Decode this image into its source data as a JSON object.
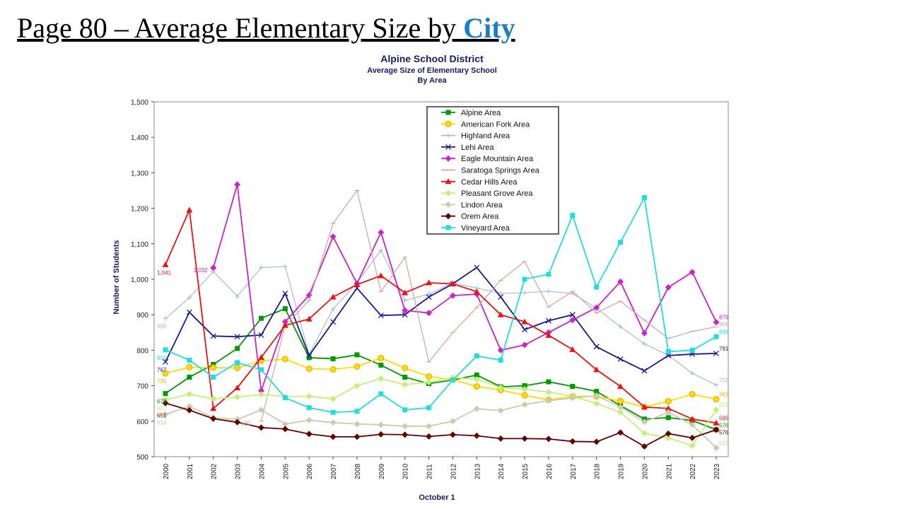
{
  "slide": {
    "title_prefix": "Page 80 – Average Elementary Size by ",
    "title_link": "City",
    "link_color": "#1a7fc4"
  },
  "chart_data": {
    "type": "line",
    "title": "Alpine School District",
    "subtitle": "Average Size of Elementary School",
    "subtitle2": "By Area",
    "xlabel": "October 1",
    "ylabel": "Number of Students",
    "ylim": [
      500,
      1500
    ],
    "yticks": [
      "500",
      "600",
      "700",
      "800",
      "900",
      "1,000",
      "1,100",
      "1,200",
      "1,300",
      "1,400",
      "1,500"
    ],
    "ytick_values": [
      500,
      600,
      700,
      800,
      900,
      1000,
      1100,
      1200,
      1300,
      1400,
      1500
    ],
    "x": [
      "2000",
      "2001",
      "2002",
      "2003",
      "2004",
      "2005",
      "2006",
      "2007",
      "2008",
      "2009",
      "2010",
      "2011",
      "2012",
      "2013",
      "2014",
      "2015",
      "2016",
      "2017",
      "2018",
      "2019",
      "2020",
      "2021",
      "2022",
      "2023"
    ],
    "grid": false,
    "legend": "top-center",
    "series": [
      {
        "name": "Alpine Area",
        "color": "#009900",
        "marker": "square",
        "values": [
          678,
          724,
          760,
          805,
          890,
          917,
          779,
          776,
          787,
          758,
          724,
          706,
          716,
          730,
          697,
          700,
          711,
          698,
          684,
          644,
          606,
          610,
          602,
          576
        ],
        "labels": {
          "0": "678",
          "23": "576"
        }
      },
      {
        "name": "American Fork Area",
        "color": "#ffdd00",
        "marker": "circle",
        "values": [
          735,
          752,
          751,
          750,
          770,
          775,
          748,
          746,
          754,
          778,
          750,
          726,
          717,
          698,
          688,
          673,
          660,
          670,
          670,
          657,
          640,
          656,
          676,
          662
        ],
        "labels": {
          "0": "735",
          "23": "662"
        }
      },
      {
        "name": "Highland Area",
        "color": "#a8bccc",
        "marker": "plus",
        "values": [
          889,
          948,
          1022,
          952,
          1033,
          1036,
          788,
          916,
          990,
          1082,
          940,
          958,
          990,
          975,
          960,
          962,
          966,
          960,
          918,
          866,
          818,
          786,
          735,
          702
        ],
        "labels": {
          "0": "889",
          "23": "702"
        }
      },
      {
        "name": "Lehi Area",
        "color": "#1a1a99",
        "marker": "x",
        "values": [
          767,
          907,
          840,
          838,
          843,
          960,
          785,
          880,
          975,
          898,
          900,
          950,
          987,
          1033,
          950,
          858,
          883,
          900,
          810,
          775,
          742,
          785,
          789,
          791
        ],
        "labels": {
          "0": "767",
          "23": "791"
        }
      },
      {
        "name": "Eagle Mountain Area",
        "color": "#cc22cc",
        "marker": "diamond",
        "values": [
          null,
          null,
          1032,
          1267,
          686,
          880,
          955,
          1120,
          988,
          1132,
          912,
          905,
          954,
          958,
          800,
          815,
          850,
          885,
          920,
          993,
          848,
          977,
          1020,
          879
        ],
        "labels": {
          "2": "1,032",
          "23": "879"
        }
      },
      {
        "name": "Saratoga Springs Area",
        "color": "#d8a0a0",
        "marker": "dash",
        "values": [
          null,
          null,
          null,
          null,
          600,
          870,
          940,
          1157,
          1250,
          965,
          1062,
          767,
          850,
          920,
          997,
          1050,
          922,
          966,
          905,
          938,
          885,
          833,
          853,
          866
        ],
        "labels": {
          "4": "600",
          "23": "866"
        }
      },
      {
        "name": "Cedar Hills Area",
        "color": "#ee1111",
        "marker": "triangle",
        "values": [
          1041,
          1195,
          636,
          694,
          780,
          870,
          888,
          950,
          985,
          1010,
          962,
          990,
          987,
          965,
          900,
          880,
          842,
          802,
          745,
          698,
          640,
          636,
          606,
          595
        ],
        "labels": {
          "0": "1,041",
          "23": "595"
        }
      },
      {
        "name": "Pleasant Grove Area",
        "color": "#c4f07a",
        "marker": "diamond",
        "values": [
          660,
          676,
          663,
          668,
          675,
          670,
          670,
          663,
          700,
          720,
          703,
          710,
          723,
          718,
          695,
          690,
          682,
          670,
          650,
          625,
          566,
          553,
          531,
          632
        ],
        "labels": {
          "0": "660",
          "23": "632"
        }
      },
      {
        "name": "Lindon Area",
        "color": "#cccab0",
        "marker": "diamond",
        "values": [
          619,
          642,
          610,
          605,
          632,
          592,
          603,
          596,
          592,
          590,
          586,
          586,
          600,
          635,
          630,
          647,
          658,
          665,
          672,
          640,
          598,
          625,
          590,
          525
        ],
        "labels": {
          "0": "619",
          "23": "525"
        }
      },
      {
        "name": "Orem Area",
        "color": "#660000",
        "marker": "diamond",
        "values": [
          651,
          631,
          607,
          597,
          582,
          578,
          564,
          556,
          556,
          563,
          562,
          557,
          562,
          559,
          551,
          551,
          550,
          543,
          542,
          568,
          529,
          565,
          553,
          576
        ],
        "labels": {
          "0": "651",
          "23": "576"
        }
      },
      {
        "name": "Vineyard Area",
        "color": "#22dddd",
        "marker": "square",
        "values": [
          801,
          772,
          724,
          765,
          745,
          666,
          638,
          625,
          628,
          677,
          632,
          638,
          716,
          784,
          772,
          1000,
          1014,
          1180,
          978,
          1104,
          1230,
          796,
          800,
          838
        ],
        "labels": {
          "0": "801",
          "23": "838"
        }
      }
    ]
  }
}
